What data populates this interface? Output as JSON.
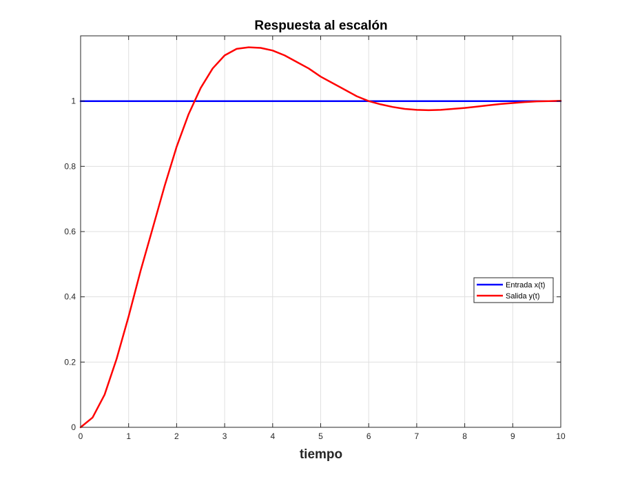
{
  "chart_data": {
    "type": "line",
    "title": "Respuesta al escalón",
    "xlabel": "tiempo",
    "ylabel": "",
    "xlim": [
      0,
      10
    ],
    "ylim": [
      0,
      1.2
    ],
    "x_ticks": [
      0,
      1,
      2,
      3,
      4,
      5,
      6,
      7,
      8,
      9,
      10
    ],
    "y_ticks": [
      0,
      0.2,
      0.4,
      0.6,
      0.8,
      1
    ],
    "x_tick_labels": [
      "0",
      "1",
      "2",
      "3",
      "4",
      "5",
      "6",
      "7",
      "8",
      "9",
      "10"
    ],
    "y_tick_labels": [
      "0",
      "0.2",
      "0.4",
      "0.6",
      "0.8",
      "1"
    ],
    "grid": true,
    "legend_position": "right",
    "series": [
      {
        "name": "Entrada x(t)",
        "color": "#0000ff",
        "x": [
          0,
          10
        ],
        "y": [
          1,
          1
        ]
      },
      {
        "name": "Salida y(t)",
        "color": "#ff0000",
        "x": [
          0,
          0.25,
          0.5,
          0.75,
          1,
          1.25,
          1.5,
          1.75,
          2,
          2.25,
          2.5,
          2.75,
          3,
          3.25,
          3.5,
          3.75,
          4,
          4.25,
          4.5,
          4.75,
          5,
          5.25,
          5.5,
          5.75,
          6,
          6.25,
          6.5,
          6.75,
          7,
          7.25,
          7.5,
          7.75,
          8,
          8.25,
          8.5,
          8.75,
          9,
          9.25,
          9.5,
          9.75,
          10
        ],
        "y": [
          0,
          0.03,
          0.1,
          0.21,
          0.34,
          0.48,
          0.61,
          0.74,
          0.86,
          0.96,
          1.04,
          1.1,
          1.14,
          1.16,
          1.165,
          1.163,
          1.155,
          1.14,
          1.12,
          1.1,
          1.075,
          1.055,
          1.035,
          1.015,
          1.0,
          0.99,
          0.982,
          0.976,
          0.973,
          0.972,
          0.973,
          0.976,
          0.979,
          0.983,
          0.987,
          0.991,
          0.994,
          0.997,
          0.999,
          1.0,
          1.001
        ]
      }
    ]
  }
}
